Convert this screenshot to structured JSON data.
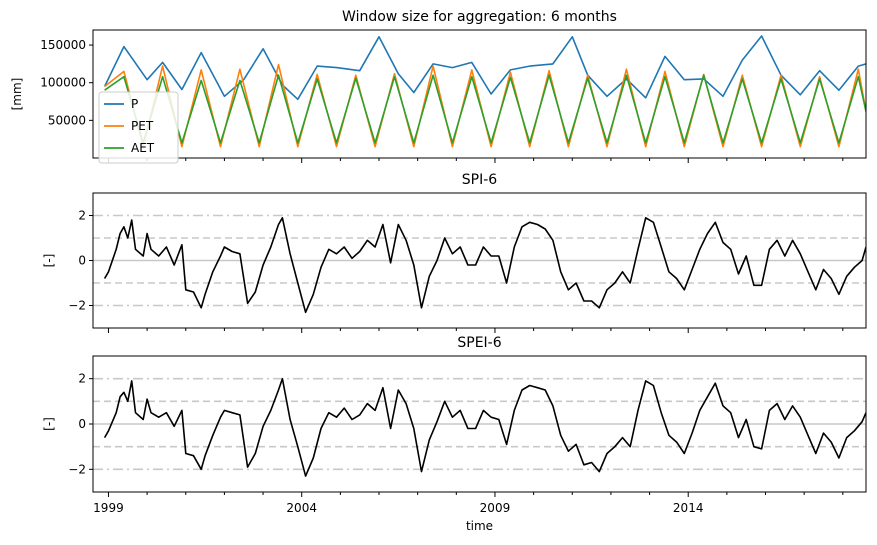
{
  "chart_data": [
    {
      "type": "line",
      "title": "Window size for aggregation: 6 months",
      "ylabel": "[mm]",
      "xlim": [
        1998.6,
        2018.6
      ],
      "ylim": [
        0,
        170000
      ],
      "yticks": [
        50000,
        100000,
        150000
      ],
      "legend": "upper-left",
      "series": [
        {
          "name": "P",
          "color": "#1f77b4",
          "x": [
            1998.9,
            1999.4,
            2000.0,
            2000.4,
            2000.9,
            2001.4,
            2002.0,
            2002.5,
            2003.0,
            2003.5,
            2003.9,
            2004.4,
            2004.9,
            2005.5,
            2006.0,
            2006.5,
            2006.9,
            2007.4,
            2007.9,
            2008.4,
            2008.9,
            2009.4,
            2009.9,
            2010.5,
            2011.0,
            2011.4,
            2011.9,
            2012.4,
            2012.9,
            2013.4,
            2013.9,
            2014.4,
            2014.9,
            2015.4,
            2015.9,
            2016.4,
            2016.9,
            2017.4,
            2017.9,
            2018.4,
            2018.6
          ],
          "values": [
            95000,
            148000,
            104000,
            127000,
            91000,
            140000,
            82000,
            104000,
            145000,
            97000,
            78000,
            122000,
            120000,
            116000,
            161000,
            112000,
            87000,
            125000,
            120000,
            127000,
            85000,
            117000,
            122000,
            125000,
            161000,
            110000,
            82000,
            105000,
            80000,
            135000,
            104000,
            105000,
            82000,
            130000,
            162000,
            110000,
            84000,
            116000,
            90000,
            122000,
            125000
          ]
        },
        {
          "name": "PET",
          "color": "#ff7f0e",
          "x": [
            1998.9,
            1999.4,
            1999.9,
            2000.4,
            2000.9,
            2001.4,
            2001.9,
            2002.4,
            2002.9,
            2003.4,
            2003.9,
            2004.4,
            2004.9,
            2005.4,
            2005.9,
            2006.4,
            2006.9,
            2007.4,
            2007.9,
            2008.4,
            2008.9,
            2009.4,
            2009.9,
            2010.4,
            2010.9,
            2011.4,
            2011.9,
            2012.4,
            2012.9,
            2013.4,
            2013.9,
            2014.4,
            2014.9,
            2015.4,
            2015.9,
            2016.4,
            2016.9,
            2017.4,
            2017.9,
            2018.4,
            2018.6
          ],
          "values": [
            95000,
            115000,
            15000,
            122000,
            15000,
            117000,
            15000,
            118000,
            15000,
            124000,
            15000,
            111000,
            15000,
            110000,
            15000,
            112000,
            15000,
            122000,
            15000,
            117000,
            15000,
            114000,
            15000,
            116000,
            15000,
            110000,
            15000,
            118000,
            15000,
            115000,
            15000,
            111000,
            15000,
            110000,
            15000,
            110000,
            15000,
            108000,
            15000,
            118000,
            62000
          ]
        },
        {
          "name": "AET",
          "color": "#2ca02c",
          "x": [
            1998.9,
            1999.4,
            1999.9,
            2000.4,
            2000.9,
            2001.4,
            2001.9,
            2002.4,
            2002.9,
            2003.4,
            2003.9,
            2004.4,
            2004.9,
            2005.4,
            2005.9,
            2006.4,
            2006.9,
            2007.4,
            2007.9,
            2008.4,
            2008.9,
            2009.4,
            2009.9,
            2010.4,
            2010.9,
            2011.4,
            2011.9,
            2012.4,
            2012.9,
            2013.4,
            2013.9,
            2014.4,
            2014.9,
            2015.4,
            2015.9,
            2016.4,
            2016.9,
            2017.4,
            2017.9,
            2018.4,
            2018.6
          ],
          "values": [
            90000,
            108000,
            20000,
            108000,
            20000,
            103000,
            20000,
            103000,
            20000,
            110000,
            20000,
            105000,
            20000,
            106000,
            20000,
            108000,
            20000,
            110000,
            20000,
            108000,
            20000,
            107000,
            20000,
            110000,
            20000,
            106000,
            20000,
            110000,
            20000,
            108000,
            20000,
            110000,
            20000,
            105000,
            20000,
            105000,
            20000,
            105000,
            20000,
            108000,
            62000
          ]
        }
      ]
    },
    {
      "type": "line",
      "title": "SPI-6",
      "ylabel": "[-]",
      "xlim": [
        1998.6,
        2018.6
      ],
      "ylim": [
        -3,
        3
      ],
      "yticks": [
        -2,
        0,
        2
      ],
      "reference_lines": [
        -2,
        -1,
        0,
        1,
        2
      ],
      "series": [
        {
          "name": "",
          "color": "#000000",
          "x": [
            1998.9,
            1999.0,
            1999.2,
            1999.3,
            1999.4,
            1999.5,
            1999.6,
            1999.7,
            1999.9,
            2000.0,
            2000.1,
            2000.3,
            2000.5,
            2000.7,
            2000.9,
            2001.0,
            2001.2,
            2001.4,
            2001.5,
            2001.7,
            2001.9,
            2002.0,
            2002.2,
            2002.4,
            2002.6,
            2002.8,
            2003.0,
            2003.2,
            2003.4,
            2003.5,
            2003.7,
            2003.9,
            2004.1,
            2004.3,
            2004.5,
            2004.7,
            2004.9,
            2005.1,
            2005.3,
            2005.5,
            2005.7,
            2005.9,
            2006.1,
            2006.3,
            2006.5,
            2006.7,
            2006.9,
            2007.1,
            2007.3,
            2007.5,
            2007.7,
            2007.9,
            2008.1,
            2008.3,
            2008.5,
            2008.7,
            2008.9,
            2009.1,
            2009.3,
            2009.5,
            2009.7,
            2009.9,
            2010.1,
            2010.3,
            2010.5,
            2010.7,
            2010.9,
            2011.1,
            2011.3,
            2011.5,
            2011.7,
            2011.9,
            2012.1,
            2012.3,
            2012.5,
            2012.7,
            2012.9,
            2013.1,
            2013.3,
            2013.5,
            2013.7,
            2013.9,
            2014.1,
            2014.3,
            2014.5,
            2014.7,
            2014.9,
            2015.1,
            2015.3,
            2015.5,
            2015.7,
            2015.9,
            2016.1,
            2016.3,
            2016.5,
            2016.7,
            2016.9,
            2017.1,
            2017.3,
            2017.5,
            2017.7,
            2017.9,
            2018.1,
            2018.3,
            2018.5,
            2018.6
          ],
          "values": [
            -0.8,
            -0.5,
            0.5,
            1.2,
            1.5,
            1.0,
            1.8,
            0.5,
            0.2,
            1.2,
            0.5,
            0.2,
            0.6,
            -0.2,
            0.7,
            -1.3,
            -1.4,
            -2.1,
            -1.5,
            -0.5,
            0.2,
            0.6,
            0.4,
            0.3,
            -1.9,
            -1.4,
            -0.2,
            0.6,
            1.6,
            1.9,
            0.3,
            -1.0,
            -2.3,
            -1.5,
            -0.3,
            0.5,
            0.3,
            0.6,
            0.1,
            0.4,
            0.9,
            0.6,
            1.6,
            -0.1,
            1.6,
            0.9,
            -0.2,
            -2.1,
            -0.7,
            0.0,
            1.0,
            0.3,
            0.6,
            -0.2,
            -0.2,
            0.6,
            0.2,
            0.2,
            -1.0,
            0.6,
            1.5,
            1.7,
            1.6,
            1.4,
            0.9,
            -0.5,
            -1.3,
            -1.0,
            -1.8,
            -1.8,
            -2.1,
            -1.3,
            -1.0,
            -0.5,
            -1.0,
            0.5,
            1.9,
            1.7,
            0.6,
            -0.5,
            -0.8,
            -1.3,
            -0.4,
            0.5,
            1.2,
            1.7,
            0.8,
            0.5,
            -0.6,
            0.2,
            -1.1,
            -1.1,
            0.5,
            0.9,
            0.2,
            0.9,
            0.3,
            -0.5,
            -1.3,
            -0.4,
            -0.8,
            -1.5,
            -0.7,
            -0.3,
            0.0,
            0.6
          ]
        }
      ]
    },
    {
      "type": "line",
      "title": "SPEI-6",
      "ylabel": "[-]",
      "xlabel": "time",
      "xlim": [
        1998.6,
        2018.6
      ],
      "ylim": [
        -3,
        3
      ],
      "yticks": [
        -2,
        0,
        2
      ],
      "xticks": [
        1999,
        2004,
        2009,
        2014
      ],
      "xtick_labels": [
        "1999",
        "2004",
        "2009",
        "2014"
      ],
      "reference_lines": [
        -2,
        -1,
        0,
        1,
        2
      ],
      "series": [
        {
          "name": "",
          "color": "#000000",
          "x": [
            1998.9,
            1999.0,
            1999.2,
            1999.3,
            1999.4,
            1999.5,
            1999.6,
            1999.7,
            1999.9,
            2000.0,
            2000.1,
            2000.3,
            2000.5,
            2000.7,
            2000.9,
            2001.0,
            2001.2,
            2001.4,
            2001.5,
            2001.7,
            2001.9,
            2002.0,
            2002.2,
            2002.4,
            2002.6,
            2002.8,
            2003.0,
            2003.2,
            2003.4,
            2003.5,
            2003.7,
            2003.9,
            2004.1,
            2004.3,
            2004.5,
            2004.7,
            2004.9,
            2005.1,
            2005.3,
            2005.5,
            2005.7,
            2005.9,
            2006.1,
            2006.3,
            2006.5,
            2006.7,
            2006.9,
            2007.1,
            2007.3,
            2007.5,
            2007.7,
            2007.9,
            2008.1,
            2008.3,
            2008.5,
            2008.7,
            2008.9,
            2009.1,
            2009.3,
            2009.5,
            2009.7,
            2009.9,
            2010.1,
            2010.3,
            2010.5,
            2010.7,
            2010.9,
            2011.1,
            2011.3,
            2011.5,
            2011.7,
            2011.9,
            2012.1,
            2012.3,
            2012.5,
            2012.7,
            2012.9,
            2013.1,
            2013.3,
            2013.5,
            2013.7,
            2013.9,
            2014.1,
            2014.3,
            2014.5,
            2014.7,
            2014.9,
            2015.1,
            2015.3,
            2015.5,
            2015.7,
            2015.9,
            2016.1,
            2016.3,
            2016.5,
            2016.7,
            2016.9,
            2017.1,
            2017.3,
            2017.5,
            2017.7,
            2017.9,
            2018.1,
            2018.3,
            2018.5,
            2018.6
          ],
          "values": [
            -0.6,
            -0.3,
            0.5,
            1.2,
            1.4,
            1.0,
            1.9,
            0.5,
            0.2,
            1.1,
            0.5,
            0.3,
            0.5,
            -0.1,
            0.6,
            -1.3,
            -1.4,
            -2.0,
            -1.4,
            -0.5,
            0.3,
            0.6,
            0.5,
            0.4,
            -1.9,
            -1.3,
            -0.1,
            0.6,
            1.5,
            2.0,
            0.2,
            -1.0,
            -2.3,
            -1.5,
            -0.2,
            0.5,
            0.3,
            0.7,
            0.2,
            0.4,
            0.9,
            0.6,
            1.6,
            -0.2,
            1.5,
            0.9,
            -0.2,
            -2.1,
            -0.7,
            0.1,
            1.0,
            0.3,
            0.6,
            -0.2,
            -0.2,
            0.6,
            0.3,
            0.2,
            -0.9,
            0.6,
            1.5,
            1.7,
            1.6,
            1.5,
            0.8,
            -0.5,
            -1.2,
            -0.9,
            -1.8,
            -1.7,
            -2.1,
            -1.3,
            -1.0,
            -0.6,
            -1.0,
            0.6,
            1.9,
            1.7,
            0.5,
            -0.5,
            -0.8,
            -1.3,
            -0.4,
            0.6,
            1.2,
            1.8,
            0.8,
            0.5,
            -0.6,
            0.2,
            -1.0,
            -1.1,
            0.6,
            0.9,
            0.2,
            0.8,
            0.3,
            -0.5,
            -1.3,
            -0.4,
            -0.8,
            -1.5,
            -0.6,
            -0.3,
            0.1,
            0.5
          ]
        }
      ]
    }
  ]
}
